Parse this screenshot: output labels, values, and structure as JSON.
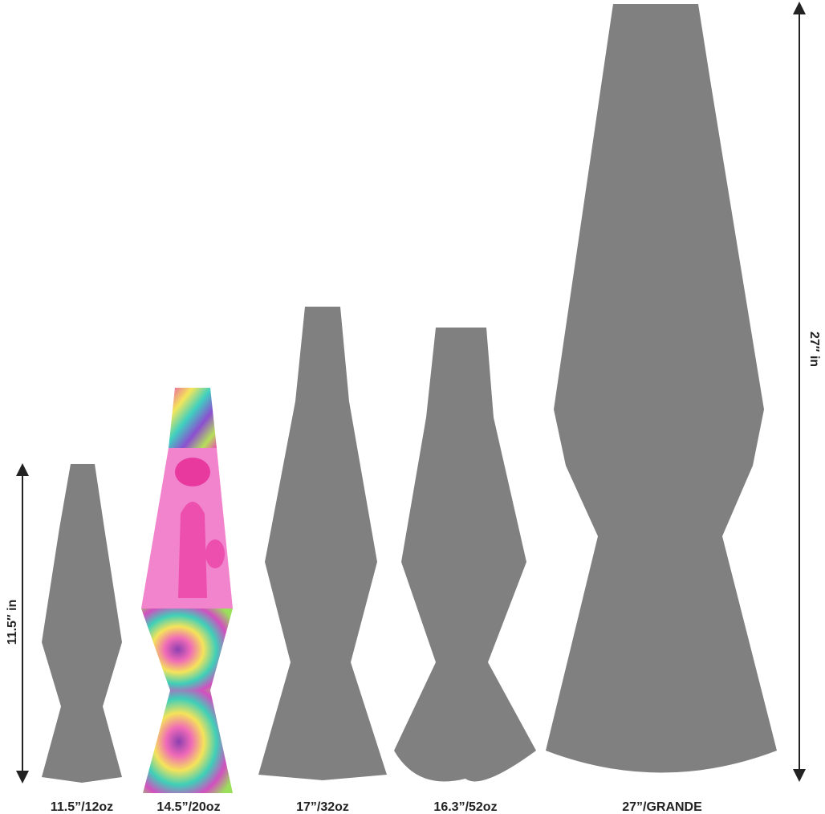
{
  "height_labels": {
    "small": "11.5″ in",
    "grande": "27″ in"
  },
  "lamps": [
    {
      "label": "11.5”/12oz"
    },
    {
      "label": "14.5”/20oz"
    },
    {
      "label": "17”/32oz"
    },
    {
      "label": "16.3”/52oz"
    },
    {
      "label": "27”/GRANDE"
    }
  ]
}
